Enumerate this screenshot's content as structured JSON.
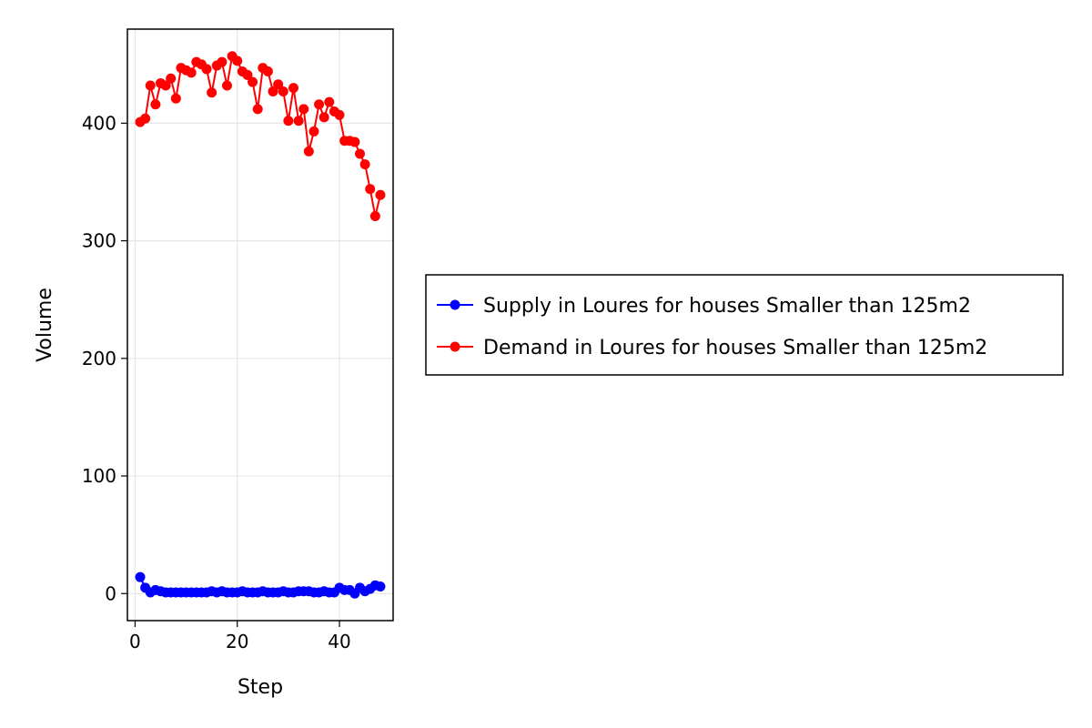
{
  "chart_data": {
    "type": "line",
    "title": "",
    "xlabel": "Step",
    "ylabel": "Volume",
    "xlim": [
      -1.5,
      50.5
    ],
    "ylim": [
      -23,
      480
    ],
    "xticks": [
      0,
      20,
      40
    ],
    "yticks": [
      0,
      100,
      200,
      300,
      400
    ],
    "grid": true,
    "legend_position": "right",
    "markers": true,
    "x": [
      1,
      2,
      3,
      4,
      5,
      6,
      7,
      8,
      9,
      10,
      11,
      12,
      13,
      14,
      15,
      16,
      17,
      18,
      19,
      20,
      21,
      22,
      23,
      24,
      25,
      26,
      27,
      28,
      29,
      30,
      31,
      32,
      33,
      34,
      35,
      36,
      37,
      38,
      39,
      40,
      41,
      42,
      43,
      44,
      45,
      46,
      47,
      48
    ],
    "series": [
      {
        "name": "Supply in Loures for houses Smaller than 125m2",
        "color": "#0000ff",
        "values": [
          14,
          5,
          1,
          3,
          2,
          1,
          1,
          1,
          1,
          1,
          1,
          1,
          1,
          1,
          2,
          1,
          2,
          1,
          1,
          1,
          2,
          1,
          1,
          1,
          2,
          1,
          1,
          1,
          2,
          1,
          1,
          2,
          2,
          2,
          1,
          1,
          2,
          1,
          1,
          5,
          3,
          3,
          0,
          5,
          2,
          4,
          7,
          6
        ]
      },
      {
        "name": "Demand in Loures for houses Smaller than 125m2",
        "color": "#ff0000",
        "values": [
          401,
          404,
          432,
          416,
          434,
          432,
          438,
          421,
          447,
          445,
          443,
          452,
          450,
          446,
          426,
          449,
          452,
          432,
          457,
          453,
          444,
          441,
          435,
          412,
          447,
          444,
          427,
          433,
          427,
          402,
          430,
          402,
          412,
          376,
          393,
          416,
          405,
          418,
          410,
          407,
          385,
          385,
          384,
          374,
          365,
          344,
          321,
          339
        ]
      }
    ]
  }
}
